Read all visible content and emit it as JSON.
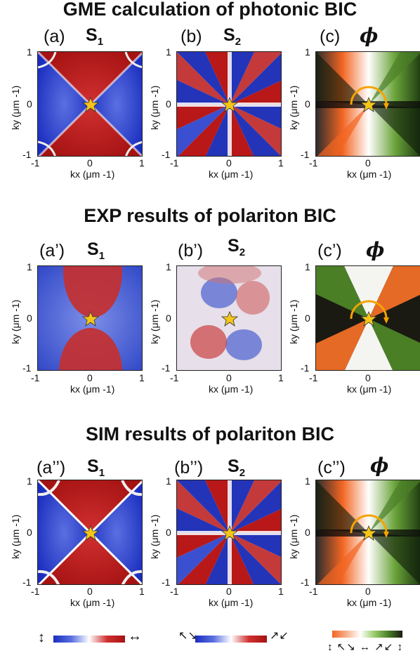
{
  "titles": {
    "row1": "GME calculation of photonic BIC",
    "row2": "EXP results of polariton BIC",
    "row3": "SIM results of polariton BIC"
  },
  "panels": {
    "row1": [
      {
        "letter": "(a)",
        "qty": "S",
        "sub": "1"
      },
      {
        "letter": "(b)",
        "qty": "S",
        "sub": "2"
      },
      {
        "letter": "(c)",
        "qty": "ϕ"
      }
    ],
    "row2": [
      {
        "letter": "(a’)",
        "qty": "S",
        "sub": "1"
      },
      {
        "letter": "(b’)",
        "qty": "S",
        "sub": "2"
      },
      {
        "letter": "(c’)",
        "qty": "ϕ"
      }
    ],
    "row3": [
      {
        "letter": "(a’’)",
        "qty": "S",
        "sub": "1"
      },
      {
        "letter": "(b’’)",
        "qty": "S",
        "sub": "2"
      },
      {
        "letter": "(c’’)",
        "qty": "ϕ"
      }
    ]
  },
  "axes": {
    "xlabel": "kx (μm -1)",
    "ylabel": "ky (μm -1)",
    "ticks": [
      "-1",
      "0",
      "1"
    ],
    "range": [
      -1,
      1
    ]
  },
  "colorbars": {
    "s1_left_arrow": "↕",
    "s1_right_arrow": "↔",
    "s2_left_arrow": "↖↘",
    "s2_right_arrow": "↗↙",
    "phi_arrows": "↕ ↖↘ ↔ ↗↙ ↕"
  },
  "colors": {
    "blue": "#1a2dbf",
    "red": "#b81818",
    "orange": "#f26522",
    "green": "#4a7f26",
    "star": "#f5c518",
    "arc": "#f5a300"
  }
}
